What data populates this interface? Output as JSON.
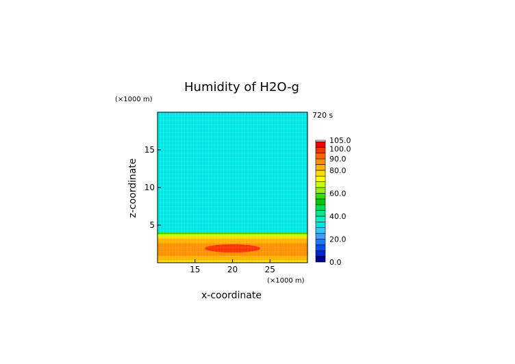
{
  "chart_data": {
    "type": "heatmap",
    "title": "Humidity of H2O-g",
    "xlabel": "x-coordinate",
    "ylabel": "z-coordinate",
    "x_unit": "(×1000 m)",
    "y_unit": "(×1000 m)",
    "time_label": "720 s",
    "xlim": [
      10,
      30
    ],
    "ylim": [
      0,
      20
    ],
    "x_ticks": [
      15,
      20,
      25
    ],
    "y_ticks": [
      5,
      10,
      15
    ],
    "colorbar": {
      "levels": [
        0,
        5,
        10,
        15,
        20,
        25,
        30,
        35,
        40,
        45,
        50,
        55,
        60,
        65,
        70,
        75,
        80,
        85,
        90,
        95,
        100,
        105
      ],
      "colors": [
        "#00008c",
        "#0028c8",
        "#0050f0",
        "#1e78ff",
        "#3ca0ff",
        "#32c8ff",
        "#00e6e6",
        "#00f0c8",
        "#00e690",
        "#00dc50",
        "#00c800",
        "#32dc00",
        "#96f000",
        "#c8ff00",
        "#ffff00",
        "#ffdc00",
        "#ffb400",
        "#ff9000",
        "#ff6400",
        "#ff3200",
        "#f00000"
      ],
      "top_color": "#ffffff",
      "tick_labels": [
        "0.0",
        "20.0",
        "40.0",
        "60.0",
        "80.0",
        "90.0",
        "100.0",
        "105.0"
      ],
      "tick_values": [
        0,
        20,
        40,
        60,
        80,
        90,
        100,
        105
      ]
    },
    "field": {
      "upper_value": 32,
      "layers": [
        {
          "z_top": 4.0,
          "value": 55
        },
        {
          "z_top": 3.8,
          "value": 67
        },
        {
          "z_top": 3.5,
          "value": 77
        },
        {
          "z_top": 3.2,
          "value": 82
        },
        {
          "z_top": 2.6,
          "value": 87
        },
        {
          "z_top": 0.9,
          "value": 82
        },
        {
          "z_top": 0.3,
          "value": 77
        }
      ],
      "ellipse": {
        "x_center": 20,
        "z_center": 1.9,
        "x_halfwidth": 3.7,
        "z_halfheight": 0.55,
        "value": 97
      }
    }
  }
}
